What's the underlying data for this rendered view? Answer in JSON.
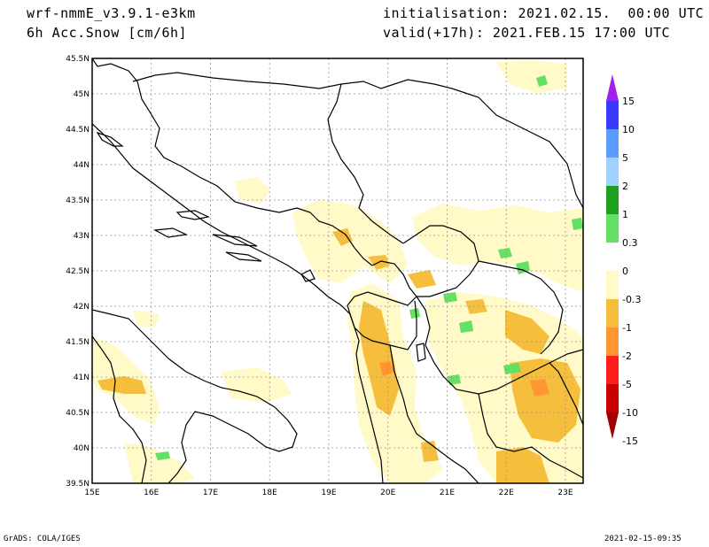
{
  "header": {
    "model": "wrf-nmmE_v3.9.1-e3km",
    "variable": "6h Acc.Snow [cm/6h]",
    "init": "initialisation: 2021.02.15.  00:00 UTC",
    "valid": "valid(+17h): 2021.FEB.15 17:00 UTC"
  },
  "map": {
    "lon_ticks": [
      "15E",
      "16E",
      "17E",
      "18E",
      "19E",
      "20E",
      "21E",
      "22E",
      "23E"
    ],
    "lat_ticks": [
      "45.5N",
      "45N",
      "44.5N",
      "44N",
      "43.5N",
      "43N",
      "42.5N",
      "42N",
      "41.5N",
      "41N",
      "40.5N",
      "40N",
      "39.5N"
    ],
    "lon_range": [
      15,
      23.3
    ],
    "lat_range": [
      39.5,
      45.5
    ],
    "grid": true
  },
  "colorbar": {
    "labels": [
      "15",
      "10",
      "5",
      "2",
      "1",
      "0.3",
      "0",
      "-0.3",
      "-1",
      "-2",
      "-5",
      "-10",
      "-15"
    ],
    "colors": [
      "#a020f0",
      "#3a3aff",
      "#5a9cff",
      "#a0d2ff",
      "#1ea01e",
      "#64e064",
      "#ffffff",
      "#fffac8",
      "#f5be3c",
      "#ff9632",
      "#ff1e1e",
      "#c80000",
      "#a00000"
    ]
  },
  "footer": {
    "left": "GrADS: COLA/IGES",
    "right": "2021-02-15-09:35"
  }
}
